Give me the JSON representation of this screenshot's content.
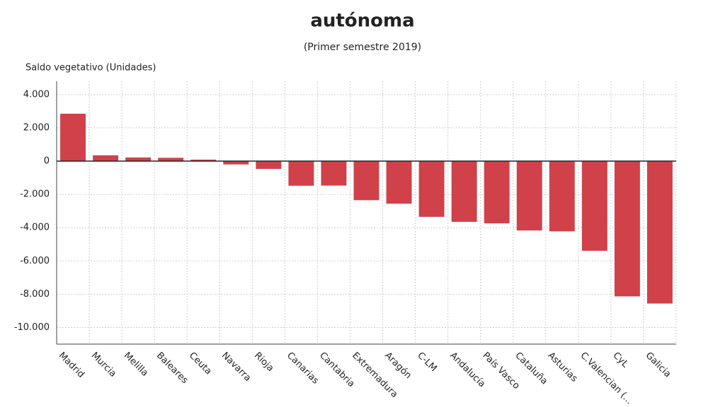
{
  "chart_data": {
    "type": "bar",
    "title": "autónoma",
    "subtitle": "(Primer semestre 2019)",
    "y_label": "Saldo vegetativo (Unidades)",
    "categories": [
      "Madrid",
      "Murcia",
      "Melilla",
      "Baleares",
      "Ceuta",
      "Navarra",
      "Rioja",
      "Canarias",
      "Cantabria",
      "Extremadura",
      "Aragón",
      "C-LM",
      "Andalucía",
      "País Vasco",
      "Cataluña",
      "Asturias",
      "C.Valencian (...",
      "CyL",
      "Galicia"
    ],
    "values": [
      2850,
      350,
      220,
      200,
      90,
      -200,
      -470,
      -1480,
      -1470,
      -2350,
      -2560,
      -3350,
      -3650,
      -3740,
      -4170,
      -4220,
      -5390,
      -8130,
      -8560
    ],
    "color": "#d0414a",
    "ylim": [
      -11000,
      4800
    ],
    "yticks": [
      {
        "value": 4000,
        "label": "4.000"
      },
      {
        "value": 2000,
        "label": "2.000"
      },
      0,
      {
        "value": -2000,
        "label": "-2.000"
      },
      {
        "value": -4000,
        "label": "-4.000"
      },
      {
        "value": -6000,
        "label": "-6.000"
      },
      {
        "value": -8000,
        "label": "-8.000"
      },
      {
        "value": -10000,
        "label": "-10.000"
      }
    ],
    "grid": true
  }
}
